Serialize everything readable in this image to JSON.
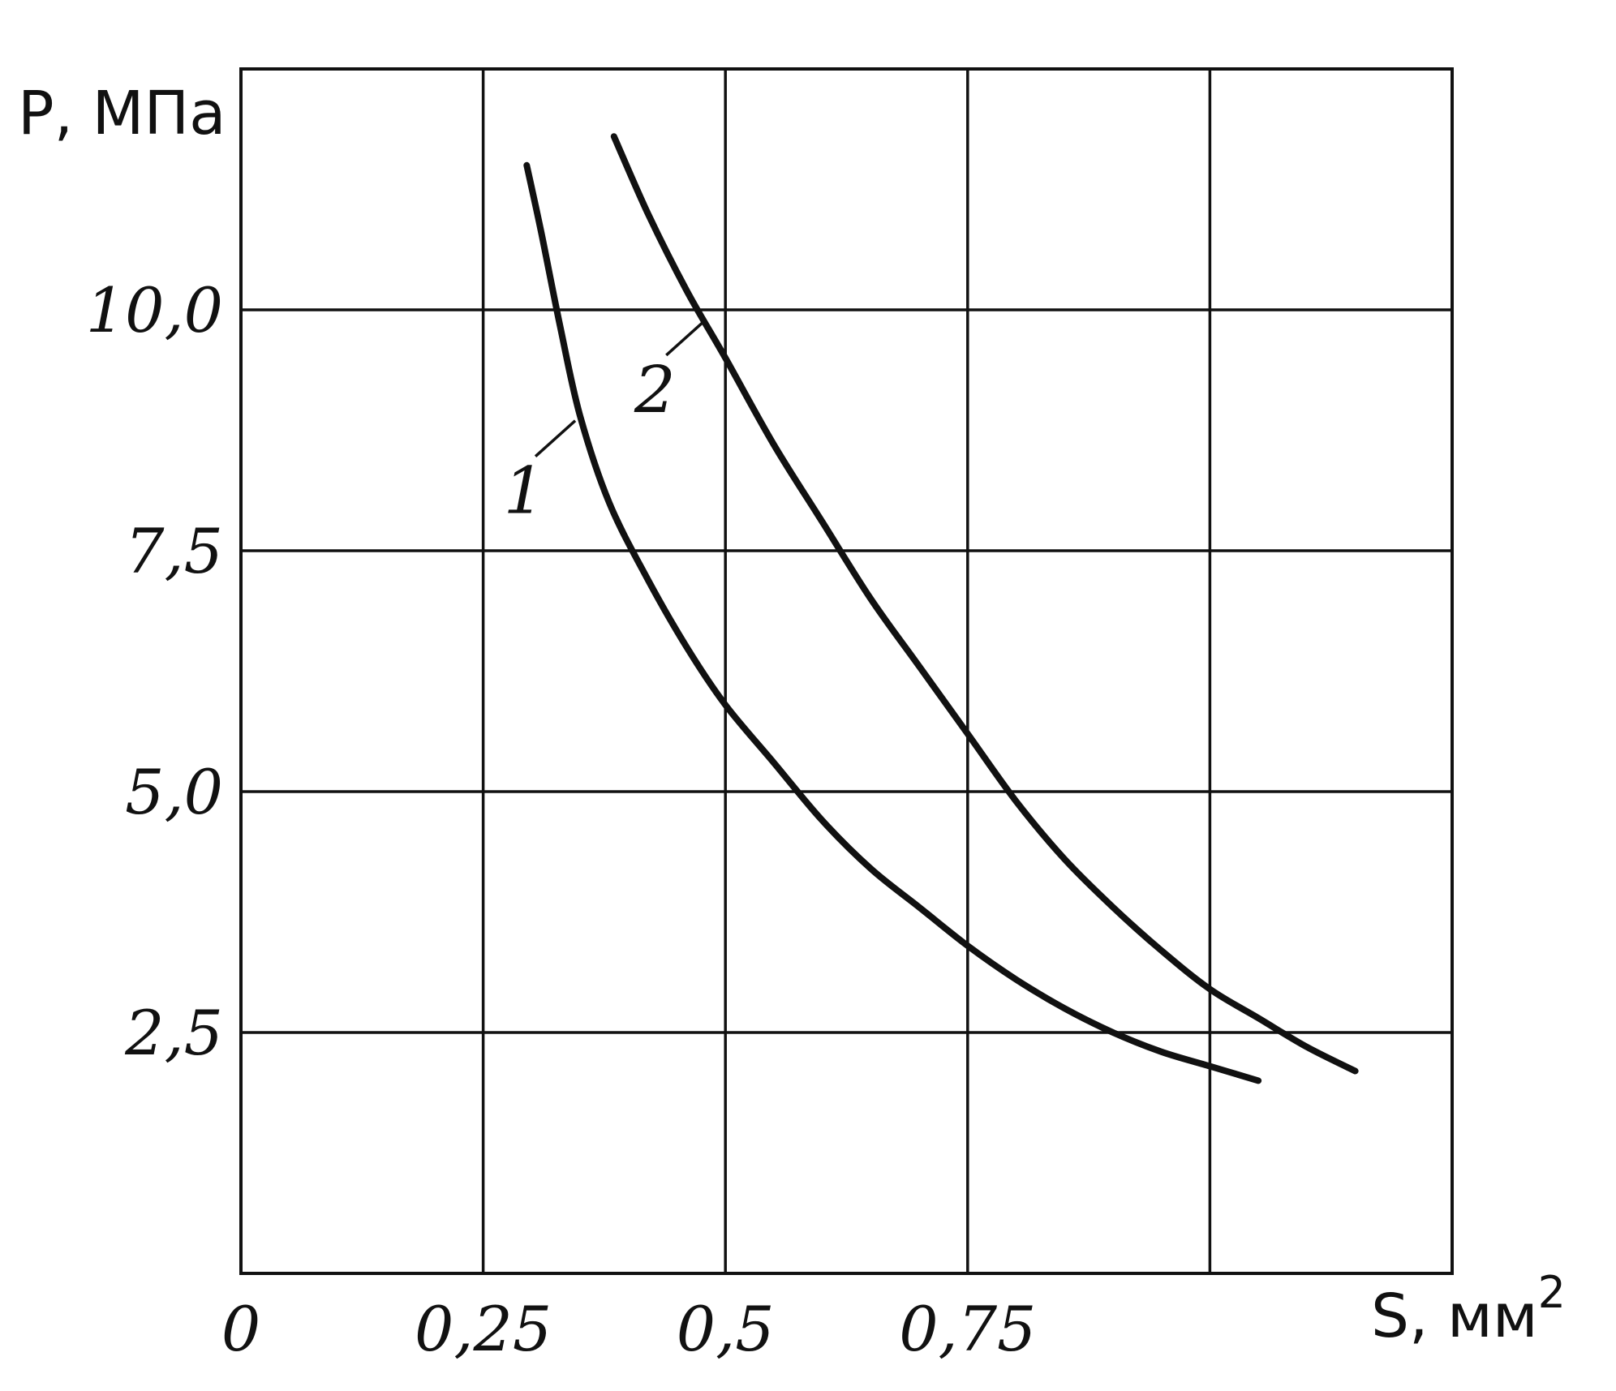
{
  "chart_data": {
    "type": "line",
    "ylabel": "P, МПа",
    "xlabel": "S, мм",
    "xlabel_sup": "2",
    "xlim": [
      0,
      1.25
    ],
    "ylim": [
      0,
      12.5
    ],
    "grid": true,
    "x_ticks": [
      {
        "value": 0,
        "label": "0"
      },
      {
        "value": 0.25,
        "label": "0,25"
      },
      {
        "value": 0.5,
        "label": "0,5"
      },
      {
        "value": 0.75,
        "label": "0,75"
      }
    ],
    "x_gridlines": [
      0.25,
      0.5,
      0.75,
      1.0,
      1.25
    ],
    "y_ticks": [
      {
        "value": 2.5,
        "label": "2,5"
      },
      {
        "value": 5.0,
        "label": "5,0"
      },
      {
        "value": 7.5,
        "label": "7,5"
      },
      {
        "value": 10.0,
        "label": "10,0"
      }
    ],
    "y_gridlines": [
      2.5,
      5.0,
      7.5,
      10.0,
      12.5
    ],
    "series": [
      {
        "name": "1",
        "x": [
          0.295,
          0.31,
          0.33,
          0.35,
          0.38,
          0.42,
          0.46,
          0.5,
          0.55,
          0.6,
          0.65,
          0.7,
          0.75,
          0.8,
          0.85,
          0.9,
          0.95,
          1.0,
          1.05
        ],
        "y": [
          11.5,
          10.8,
          9.8,
          8.9,
          8.0,
          7.2,
          6.5,
          5.9,
          5.3,
          4.7,
          4.2,
          3.8,
          3.4,
          3.05,
          2.75,
          2.5,
          2.3,
          2.15,
          2.0
        ],
        "label_anchor": {
          "x": 0.35,
          "y": 8.9
        }
      },
      {
        "name": "2",
        "x": [
          0.385,
          0.42,
          0.46,
          0.5,
          0.55,
          0.6,
          0.65,
          0.7,
          0.75,
          0.8,
          0.85,
          0.9,
          0.95,
          1.0,
          1.05,
          1.1,
          1.15
        ],
        "y": [
          11.8,
          11.0,
          10.2,
          9.5,
          8.6,
          7.8,
          7.0,
          6.3,
          5.6,
          4.9,
          4.3,
          3.8,
          3.35,
          2.95,
          2.65,
          2.35,
          2.1
        ],
        "label_anchor": {
          "x": 0.485,
          "y": 9.95
        }
      }
    ]
  }
}
